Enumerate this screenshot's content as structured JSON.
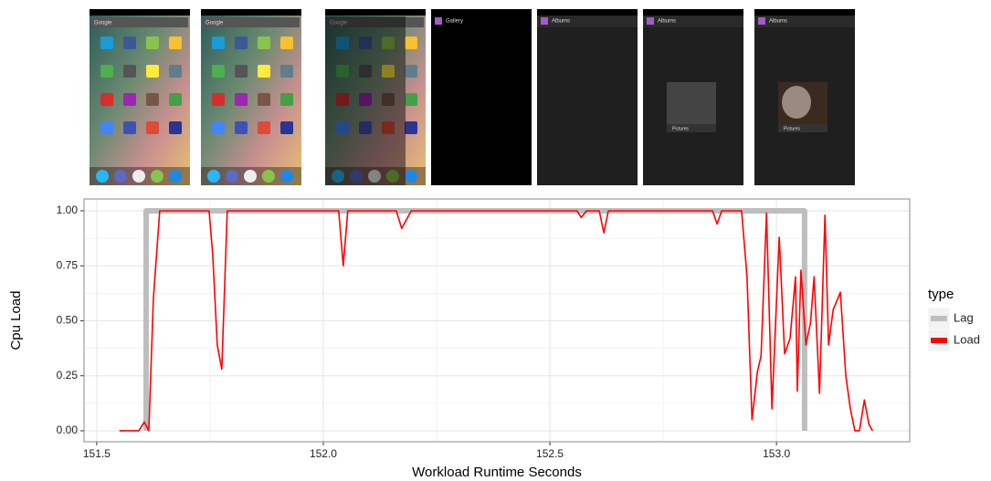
{
  "screenshots": [
    {
      "title": "Google"
    },
    {
      "title": "Google"
    },
    {
      "title": "Google"
    },
    {
      "title": "Gallery"
    },
    {
      "title": "Albums"
    },
    {
      "title": "Albums",
      "album": "Pictures"
    },
    {
      "title": "Albums",
      "album": "Pictures"
    }
  ],
  "chart_data": {
    "type": "line",
    "xlabel": "Workload Runtime Seconds",
    "ylabel": "Cpu Load",
    "xlim": [
      151.472,
      153.294
    ],
    "ylim": [
      -0.05,
      1.054
    ],
    "xticks": [
      151.5,
      {
        "value": 152.0,
        "label": "152.0"
      },
      152.5,
      {
        "value": 153.0,
        "label": "153.0"
      }
    ],
    "yticks": [
      {
        "value": 0,
        "label": "0.00"
      },
      {
        "value": 0.25,
        "label": "0.25"
      },
      {
        "value": 0.5,
        "label": "0.50"
      },
      {
        "value": 0.75,
        "label": "0.75"
      },
      {
        "value": 1,
        "label": "1.00"
      }
    ],
    "grid": true,
    "legend_title": "type",
    "legend": "right",
    "series": [
      {
        "name": "Lag",
        "color": "#bebebe",
        "x": [
          151.609,
          151.609,
          153.062,
          153.062
        ],
        "values": [
          0,
          1,
          1,
          0
        ]
      },
      {
        "name": "Load",
        "color": "#ff0000",
        "x": [
          151.55,
          151.593,
          151.605,
          151.615,
          151.625,
          151.639,
          151.748,
          151.756,
          151.766,
          151.776,
          151.788,
          152.034,
          152.044,
          152.054,
          152.161,
          152.173,
          152.194,
          152.56,
          152.569,
          152.581,
          152.609,
          152.619,
          152.629,
          152.859,
          152.869,
          152.879,
          152.923,
          152.935,
          152.946,
          152.958,
          152.966,
          152.978,
          152.99,
          153.006,
          153.018,
          153.03,
          153.042,
          153.046,
          153.054,
          153.065,
          153.075,
          153.083,
          153.095,
          153.107,
          153.115,
          153.125,
          153.141,
          153.153,
          153.163,
          153.173,
          153.183,
          153.194,
          153.204,
          153.212
        ],
        "values": [
          0,
          0,
          0.04,
          0,
          0.6,
          1,
          1,
          0.8,
          0.39,
          0.28,
          1,
          1,
          0.75,
          1,
          1,
          0.92,
          1,
          1,
          0.97,
          1,
          1,
          0.9,
          1,
          1,
          0.94,
          1,
          1,
          0.7,
          0.05,
          0.27,
          0.34,
          0.99,
          0.1,
          0.88,
          0.35,
          0.42,
          0.7,
          0.18,
          0.73,
          0.39,
          0.49,
          0.7,
          0.17,
          0.98,
          0.39,
          0.55,
          0.63,
          0.25,
          0.1,
          0,
          0,
          0.14,
          0.03,
          0
        ]
      }
    ]
  }
}
